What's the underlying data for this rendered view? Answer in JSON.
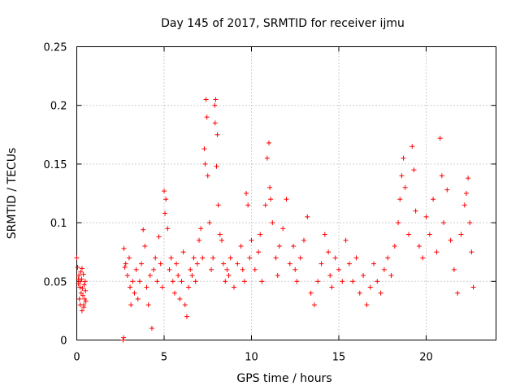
{
  "chart_data": {
    "type": "scatter",
    "title": "Day 145 of 2017, SRMTID for receiver ijmu",
    "xlabel": "GPS time / hours",
    "ylabel": "SRMTID / TECUs",
    "xlim": [
      0,
      24
    ],
    "ylim": [
      0,
      0.25
    ],
    "xticks": [
      0,
      5,
      10,
      15,
      20
    ],
    "yticks": [
      0,
      0.05,
      0.1,
      0.15,
      0.2,
      0.25
    ],
    "xtick_labels": [
      "0",
      "5",
      "10",
      "15",
      "20"
    ],
    "ytick_labels": [
      "0",
      "0.05",
      "0.1",
      "0.15",
      "0.2",
      "0.25"
    ],
    "grid": true,
    "marker": "+",
    "marker_color": "#ff0000",
    "series": [
      {
        "name": "ijmu",
        "points": [
          [
            0.0,
            0.07
          ],
          [
            0.05,
            0.062
          ],
          [
            0.1,
            0.048
          ],
          [
            0.12,
            0.055
          ],
          [
            0.15,
            0.035
          ],
          [
            0.18,
            0.045
          ],
          [
            0.2,
            0.03
          ],
          [
            0.22,
            0.058
          ],
          [
            0.25,
            0.04
          ],
          [
            0.28,
            0.052
          ],
          [
            0.3,
            0.025
          ],
          [
            0.32,
            0.044
          ],
          [
            0.35,
            0.038
          ],
          [
            0.38,
            0.056
          ],
          [
            0.4,
            0.03
          ],
          [
            0.42,
            0.047
          ],
          [
            0.45,
            0.035
          ],
          [
            0.48,
            0.05
          ],
          [
            0.5,
            0.042
          ],
          [
            0.52,
            0.033
          ],
          [
            0.3,
            0.061
          ],
          [
            0.1,
            0.052
          ],
          [
            0.4,
            0.028
          ],
          [
            0.2,
            0.05
          ],
          [
            2.65,
            0.0
          ],
          [
            2.68,
            0.002
          ],
          [
            2.7,
            0.078
          ],
          [
            2.75,
            0.062
          ],
          [
            2.8,
            0.065
          ],
          [
            2.9,
            0.055
          ],
          [
            3.0,
            0.07
          ],
          [
            3.05,
            0.045
          ],
          [
            3.1,
            0.03
          ],
          [
            3.2,
            0.05
          ],
          [
            3.3,
            0.04
          ],
          [
            3.4,
            0.06
          ],
          [
            3.5,
            0.035
          ],
          [
            3.6,
            0.05
          ],
          [
            3.7,
            0.065
          ],
          [
            3.8,
            0.094
          ],
          [
            3.9,
            0.08
          ],
          [
            4.0,
            0.045
          ],
          [
            4.1,
            0.03
          ],
          [
            4.2,
            0.055
          ],
          [
            4.3,
            0.01
          ],
          [
            4.4,
            0.06
          ],
          [
            4.5,
            0.07
          ],
          [
            4.6,
            0.05
          ],
          [
            4.7,
            0.088
          ],
          [
            4.8,
            0.065
          ],
          [
            4.9,
            0.045
          ],
          [
            5.0,
            0.127
          ],
          [
            5.05,
            0.108
          ],
          [
            5.1,
            0.12
          ],
          [
            5.2,
            0.095
          ],
          [
            5.3,
            0.06
          ],
          [
            5.4,
            0.07
          ],
          [
            5.5,
            0.05
          ],
          [
            5.6,
            0.04
          ],
          [
            5.7,
            0.065
          ],
          [
            5.8,
            0.055
          ],
          [
            5.9,
            0.035
          ],
          [
            6.0,
            0.05
          ],
          [
            6.1,
            0.075
          ],
          [
            6.2,
            0.03
          ],
          [
            6.3,
            0.02
          ],
          [
            6.4,
            0.045
          ],
          [
            6.5,
            0.06
          ],
          [
            6.6,
            0.055
          ],
          [
            6.7,
            0.07
          ],
          [
            6.8,
            0.05
          ],
          [
            6.9,
            0.065
          ],
          [
            7.0,
            0.085
          ],
          [
            7.1,
            0.095
          ],
          [
            7.2,
            0.07
          ],
          [
            7.3,
            0.163
          ],
          [
            7.35,
            0.15
          ],
          [
            7.4,
            0.205
          ],
          [
            7.45,
            0.19
          ],
          [
            7.5,
            0.14
          ],
          [
            7.6,
            0.1
          ],
          [
            7.7,
            0.06
          ],
          [
            7.8,
            0.07
          ],
          [
            7.9,
            0.2
          ],
          [
            7.92,
            0.185
          ],
          [
            7.95,
            0.205
          ],
          [
            8.0,
            0.148
          ],
          [
            8.05,
            0.175
          ],
          [
            8.1,
            0.115
          ],
          [
            8.2,
            0.09
          ],
          [
            8.3,
            0.085
          ],
          [
            8.4,
            0.065
          ],
          [
            8.5,
            0.05
          ],
          [
            8.6,
            0.06
          ],
          [
            8.7,
            0.055
          ],
          [
            8.8,
            0.07
          ],
          [
            9.0,
            0.045
          ],
          [
            9.2,
            0.065
          ],
          [
            9.4,
            0.08
          ],
          [
            9.5,
            0.06
          ],
          [
            9.6,
            0.05
          ],
          [
            9.7,
            0.125
          ],
          [
            9.8,
            0.115
          ],
          [
            9.9,
            0.07
          ],
          [
            10.0,
            0.085
          ],
          [
            10.2,
            0.06
          ],
          [
            10.4,
            0.075
          ],
          [
            10.5,
            0.09
          ],
          [
            10.6,
            0.05
          ],
          [
            10.8,
            0.115
          ],
          [
            10.9,
            0.155
          ],
          [
            11.0,
            0.168
          ],
          [
            11.05,
            0.13
          ],
          [
            11.1,
            0.12
          ],
          [
            11.2,
            0.1
          ],
          [
            11.4,
            0.07
          ],
          [
            11.5,
            0.055
          ],
          [
            11.6,
            0.08
          ],
          [
            11.8,
            0.095
          ],
          [
            12.0,
            0.12
          ],
          [
            12.2,
            0.065
          ],
          [
            12.4,
            0.08
          ],
          [
            12.5,
            0.06
          ],
          [
            12.6,
            0.05
          ],
          [
            12.8,
            0.07
          ],
          [
            13.0,
            0.085
          ],
          [
            13.2,
            0.105
          ],
          [
            13.4,
            0.04
          ],
          [
            13.6,
            0.03
          ],
          [
            13.8,
            0.05
          ],
          [
            14.0,
            0.065
          ],
          [
            14.2,
            0.09
          ],
          [
            14.4,
            0.075
          ],
          [
            14.5,
            0.055
          ],
          [
            14.6,
            0.045
          ],
          [
            14.8,
            0.07
          ],
          [
            15.0,
            0.06
          ],
          [
            15.2,
            0.05
          ],
          [
            15.4,
            0.085
          ],
          [
            15.6,
            0.065
          ],
          [
            15.8,
            0.05
          ],
          [
            16.0,
            0.07
          ],
          [
            16.2,
            0.04
          ],
          [
            16.4,
            0.055
          ],
          [
            16.6,
            0.03
          ],
          [
            16.8,
            0.045
          ],
          [
            17.0,
            0.065
          ],
          [
            17.2,
            0.05
          ],
          [
            17.4,
            0.04
          ],
          [
            17.6,
            0.06
          ],
          [
            17.8,
            0.07
          ],
          [
            18.0,
            0.055
          ],
          [
            18.2,
            0.08
          ],
          [
            18.4,
            0.1
          ],
          [
            18.5,
            0.12
          ],
          [
            18.6,
            0.14
          ],
          [
            18.7,
            0.155
          ],
          [
            18.8,
            0.13
          ],
          [
            19.0,
            0.09
          ],
          [
            19.2,
            0.165
          ],
          [
            19.3,
            0.145
          ],
          [
            19.4,
            0.11
          ],
          [
            19.6,
            0.08
          ],
          [
            19.8,
            0.07
          ],
          [
            20.0,
            0.105
          ],
          [
            20.2,
            0.09
          ],
          [
            20.4,
            0.12
          ],
          [
            20.6,
            0.075
          ],
          [
            20.8,
            0.172
          ],
          [
            20.9,
            0.14
          ],
          [
            21.0,
            0.1
          ],
          [
            21.2,
            0.128
          ],
          [
            21.4,
            0.085
          ],
          [
            21.6,
            0.06
          ],
          [
            21.8,
            0.04
          ],
          [
            22.0,
            0.09
          ],
          [
            22.2,
            0.115
          ],
          [
            22.3,
            0.125
          ],
          [
            22.4,
            0.138
          ],
          [
            22.5,
            0.1
          ],
          [
            22.6,
            0.075
          ],
          [
            22.7,
            0.045
          ]
        ]
      }
    ]
  }
}
